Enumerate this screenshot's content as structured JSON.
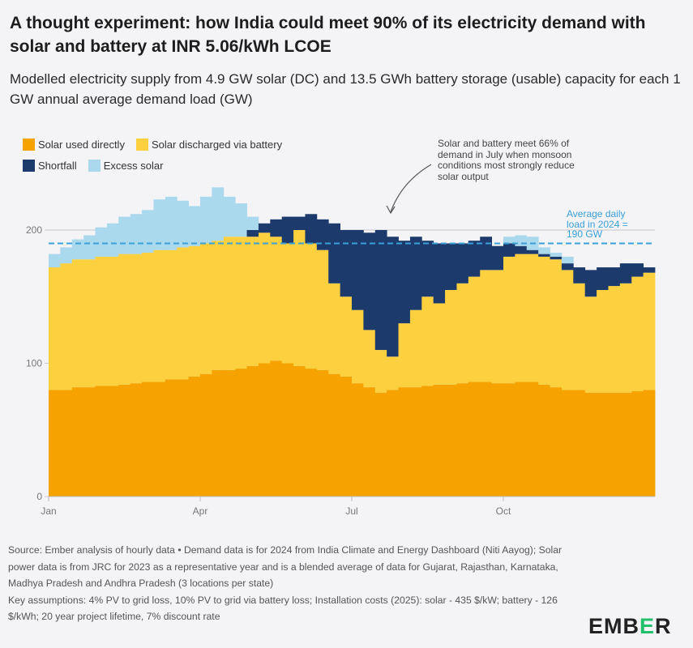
{
  "title": "A thought experiment: how India could meet 90% of its electricity demand with solar and battery at INR 5.06/kWh LCOE",
  "subtitle": "Modelled electricity supply from 4.9 GW solar (DC) and 13.5 GWh battery storage (usable) capacity for each 1 GW annual average demand load (GW)",
  "annotation": "Solar and battery meet 66% of demand in July when monsoon conditions most strongly reduce solar output",
  "avg_label": "Average daily load in 2024 = 190 GW",
  "footer": {
    "source": "Source: Ember analysis of hourly data • Demand data is for 2024 from India Climate and Energy Dashboard (Niti Aayog); Solar power data is from JRC for 2023 as a representative year and is a blended average of data for Gujarat, Rajasthan, Karnataka, Madhya Pradesh and Andhra Pradesh (3 locations per state)",
    "assumptions": "Key assumptions: 4% PV to grid loss, 10% PV to grid via battery loss; Installation costs (2025): solar - 435 $/kW; battery - 126 $/kWh; 20 year project lifetime, 7% discount rate"
  },
  "logo": {
    "pre": "EMB",
    "mid": "E",
    "post": "R"
  },
  "chart_data": {
    "type": "bar",
    "stacked": true,
    "x_unit": "week of year (approx.)",
    "x_tick_labels": [
      "Jan",
      "Apr",
      "Jul",
      "Oct"
    ],
    "y_ticks": [
      0,
      100,
      200
    ],
    "ylim": [
      0,
      240
    ],
    "grid": true,
    "legend_placement": "top-left",
    "reference_line": {
      "value": 190,
      "color": "#3aa0d8"
    },
    "series": [
      {
        "name": "Solar used directly",
        "color": "#f6a200",
        "values": [
          80,
          80,
          82,
          82,
          83,
          83,
          84,
          85,
          86,
          86,
          88,
          88,
          90,
          92,
          95,
          95,
          96,
          98,
          100,
          102,
          100,
          98,
          96,
          95,
          92,
          90,
          85,
          82,
          78,
          80,
          82,
          82,
          83,
          84,
          84,
          85,
          86,
          86,
          85,
          85,
          86,
          86,
          84,
          82,
          80,
          80,
          78,
          78,
          78,
          78,
          79,
          80
        ]
      },
      {
        "name": "Solar discharged via battery",
        "color": "#fcd03f",
        "values": [
          92,
          95,
          96,
          96,
          97,
          97,
          98,
          97,
          97,
          99,
          97,
          99,
          98,
          98,
          97,
          100,
          99,
          97,
          98,
          93,
          90,
          102,
          94,
          90,
          68,
          60,
          55,
          43,
          32,
          25,
          48,
          58,
          67,
          61,
          71,
          75,
          79,
          84,
          85,
          95,
          96,
          96,
          96,
          96,
          90,
          80,
          72,
          77,
          80,
          82,
          86,
          88
        ]
      },
      {
        "name": "Shortfall",
        "color": "#1c3a6b",
        "values": [
          0,
          0,
          0,
          0,
          0,
          0,
          0,
          0,
          0,
          0,
          0,
          0,
          0,
          0,
          0,
          0,
          0,
          5,
          7,
          13,
          20,
          10,
          22,
          23,
          45,
          50,
          60,
          73,
          90,
          90,
          62,
          55,
          42,
          45,
          35,
          30,
          27,
          25,
          18,
          10,
          6,
          3,
          2,
          2,
          5,
          12,
          20,
          17,
          14,
          15,
          10,
          4
        ]
      },
      {
        "name": "Excess solar",
        "color": "#aad8ed",
        "values": [
          10,
          12,
          15,
          18,
          22,
          25,
          28,
          30,
          32,
          38,
          40,
          35,
          30,
          35,
          40,
          30,
          25,
          10,
          0,
          0,
          0,
          0,
          0,
          0,
          0,
          0,
          0,
          0,
          0,
          0,
          0,
          0,
          0,
          0,
          0,
          0,
          0,
          0,
          0,
          5,
          8,
          10,
          5,
          3,
          5,
          0,
          0,
          0,
          0,
          0,
          0,
          0
        ]
      }
    ]
  }
}
